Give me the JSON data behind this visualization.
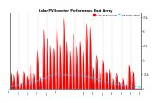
{
  "title": "Solar PV/Inverter Performance East Array",
  "legend_actual": "Actual Power Output",
  "legend_average": "Avg. Power Output",
  "bar_color": "#ff0000",
  "avg_color": "#00ccff",
  "bg_color": "#ffffff",
  "grid_color": "#aaaaaa",
  "title_color": "#000000",
  "ylim": [
    0,
    8000
  ],
  "ytick_vals": [
    0,
    1500,
    3000,
    4500,
    6000,
    7500
  ],
  "ytick_labels": [
    "0",
    "1.5k",
    "3k",
    "4.5k",
    "6k",
    "7.5k"
  ],
  "num_points": 200,
  "avg_line_y": 1800
}
